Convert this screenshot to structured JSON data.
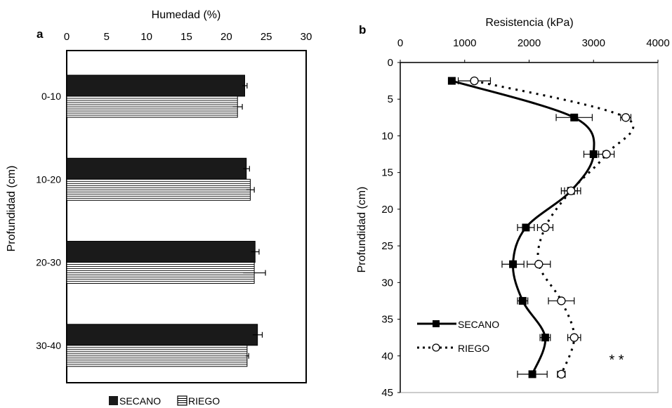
{
  "chart_data": [
    {
      "panel": "a",
      "type": "bar",
      "orientation": "horizontal",
      "xlabel": "Humedad (%)",
      "ylabel": "Profundidad (cm)",
      "xlim": [
        0,
        30
      ],
      "xticks": [
        "0",
        "5",
        "10",
        "15",
        "20",
        "25",
        "30"
      ],
      "categories": [
        "0-10",
        "10-20",
        "20-30",
        "30-40"
      ],
      "series": [
        {
          "name": "SECANO",
          "values": [
            22.3,
            22.5,
            23.6,
            23.9
          ],
          "error": [
            0.3,
            0.4,
            0.5,
            0.6
          ],
          "color": "#1a1a1a"
        },
        {
          "name": "RIEGO",
          "values": [
            21.4,
            23.0,
            23.5,
            22.6
          ],
          "error": [
            0.6,
            0.5,
            1.4,
            0.2
          ],
          "color": "#ffffff"
        }
      ],
      "legend_position": "bottom"
    },
    {
      "panel": "b",
      "type": "line",
      "xlabel": "Resistencia (kPa)",
      "ylabel": "Profundidad (cm)",
      "xlim": [
        0,
        4000
      ],
      "ylim": [
        0,
        45
      ],
      "xticks": [
        "0",
        "1000",
        "2000",
        "3000",
        "4000"
      ],
      "yticks": [
        "0",
        "5",
        "10",
        "15",
        "20",
        "25",
        "30",
        "35",
        "40",
        "45"
      ],
      "y": [
        2.5,
        7.5,
        12.5,
        17.5,
        22.5,
        27.5,
        32.5,
        37.5,
        42.5
      ],
      "series": [
        {
          "name": "SECANO",
          "values": [
            800,
            2700,
            3000,
            2650,
            1950,
            1750,
            1900,
            2250,
            2050
          ],
          "error": [
            0,
            280,
            150,
            100,
            130,
            170,
            80,
            80,
            230
          ],
          "marker": "square",
          "line": "solid"
        },
        {
          "name": "RIEGO",
          "values": [
            1150,
            3500,
            3200,
            2650,
            2250,
            2150,
            2500,
            2700,
            2500
          ],
          "error": [
            250,
            80,
            120,
            150,
            120,
            180,
            200,
            100,
            60
          ],
          "marker": "circle",
          "line": "dotted"
        }
      ],
      "annotation": "* *",
      "legend_position": "bottom-left"
    }
  ]
}
